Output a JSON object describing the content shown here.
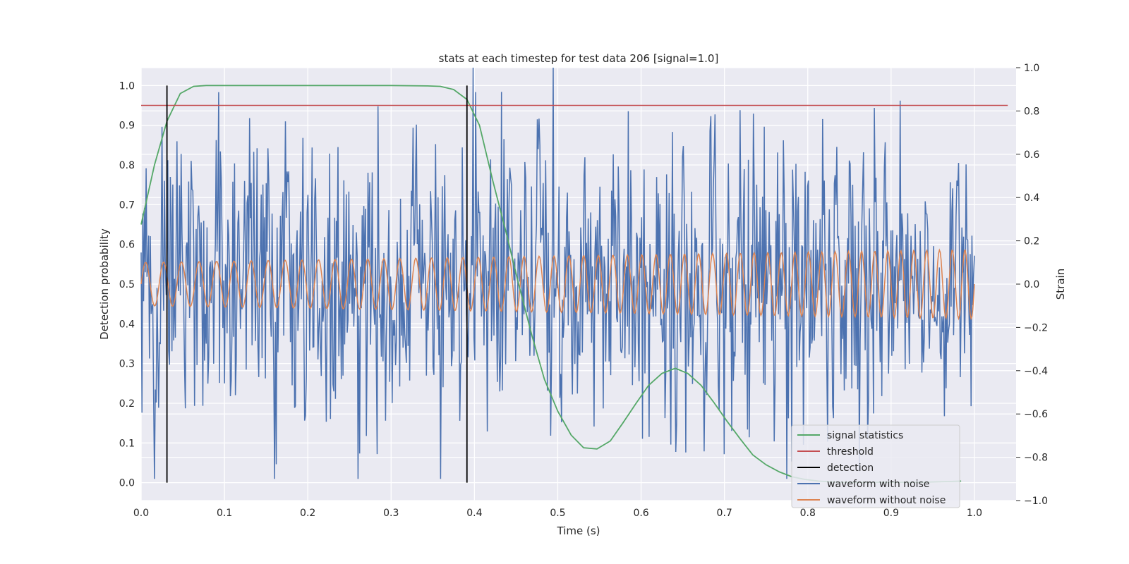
{
  "chart_data": {
    "type": "line",
    "title": "stats at each timestep for test data 206 [signal=1.0]",
    "xlabel": "Time (s)",
    "ylabel": "Detection probability",
    "ylabel_right": "Strain",
    "xlim": [
      0.0,
      1.05
    ],
    "ylim": [
      -0.045,
      1.045
    ],
    "ylim_right": [
      -1.0,
      1.0
    ],
    "xticks": [
      "0.0",
      "0.1",
      "0.2",
      "0.3",
      "0.4",
      "0.5",
      "0.6",
      "0.7",
      "0.8",
      "0.9",
      "1.0"
    ],
    "yticks": [
      "0.0",
      "0.1",
      "0.2",
      "0.3",
      "0.4",
      "0.5",
      "0.6",
      "0.7",
      "0.8",
      "0.9",
      "1.0"
    ],
    "yticks_right": [
      "−1.0",
      "−0.8",
      "−0.6",
      "−0.4",
      "−0.2",
      "0.0",
      "0.2",
      "0.4",
      "0.6",
      "0.8",
      "1.0"
    ],
    "grid": true,
    "legend_position": "lower-right",
    "colors": {
      "signal": "#55a868",
      "threshold": "#c44e52",
      "detection": "#000000",
      "noisy": "#4c72b0",
      "clean": "#dd8452",
      "background": "#eaeaf2"
    },
    "series": [
      {
        "name": "signal statistics",
        "x": [
          0.0,
          0.016,
          0.031,
          0.047,
          0.063,
          0.078,
          0.094,
          0.11,
          0.2,
          0.3,
          0.344,
          0.359,
          0.375,
          0.391,
          0.406,
          0.422,
          0.438,
          0.453,
          0.469,
          0.484,
          0.5,
          0.516,
          0.531,
          0.547,
          0.563,
          0.578,
          0.594,
          0.609,
          0.625,
          0.641,
          0.656,
          0.672,
          0.688,
          0.703,
          0.719,
          0.734,
          0.75,
          0.766,
          0.781,
          0.797,
          0.813,
          0.828,
          0.844,
          0.859,
          0.875,
          0.891,
          0.906,
          0.922,
          0.938,
          0.953,
          0.969,
          0.984
        ],
        "y": [
          0.65,
          0.8,
          0.91,
          0.98,
          0.998,
          1.0,
          1.0,
          1.0,
          1.0,
          1.0,
          0.999,
          0.998,
          0.99,
          0.965,
          0.9,
          0.76,
          0.63,
          0.5,
          0.37,
          0.26,
          0.18,
          0.12,
          0.088,
          0.085,
          0.105,
          0.15,
          0.2,
          0.245,
          0.275,
          0.288,
          0.275,
          0.245,
          0.2,
          0.155,
          0.11,
          0.07,
          0.045,
          0.027,
          0.015,
          0.008,
          0.004,
          0.002,
          0.001,
          0.001,
          0.001,
          0.001,
          0.001,
          0.001,
          0.001,
          0.002,
          0.003,
          0.004
        ]
      },
      {
        "name": "threshold",
        "x": [
          0.0,
          1.04
        ],
        "y": [
          0.95,
          0.95
        ]
      },
      {
        "name": "detection",
        "x": [
          0.031,
          0.391
        ],
        "y_range": [
          0.0,
          1.0
        ]
      },
      {
        "name": "waveform with noise",
        "axis": "right",
        "samples": 1000,
        "x_range": [
          0.0,
          1.0
        ],
        "amplitude_range": [
          -0.9,
          1.0
        ]
      },
      {
        "name": "waveform without noise",
        "axis": "right",
        "samples": 1000,
        "x_range": [
          0.0,
          1.0
        ],
        "amplitude_range": [
          -0.16,
          0.17
        ]
      }
    ]
  }
}
